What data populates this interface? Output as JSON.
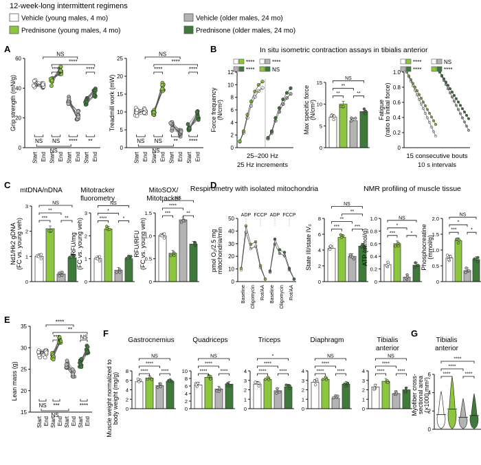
{
  "header": {
    "title": "12-week-long intermittent regimens",
    "legend": [
      {
        "label": "Vehicle (young males, 4 mo)",
        "color": "#ffffff"
      },
      {
        "label": "Prednisone (young males, 4 mo)",
        "color": "#8cc63f"
      },
      {
        "label": "Vehicle (older males, 24 mo)",
        "color": "#b3b3b3"
      },
      {
        "label": "Prednisone (older males, 24 mo)",
        "color": "#3f7a3a"
      }
    ]
  },
  "colors": {
    "veh_young": "#ffffff",
    "pred_young": "#8cc63f",
    "veh_old": "#b3b3b3",
    "pred_old": "#3f7a3a",
    "axis": "#111111"
  },
  "panels": {
    "A": "A",
    "B": "B",
    "C": "C",
    "D": "D",
    "E": "E",
    "F": "F",
    "G": "G",
    "B_title": "In situ isometric contraction assays in tibialis anterior",
    "D_resp_title": "Respirometry with isolated mitochondria",
    "D_nmr_title": "NMR profiling of muscle tissue"
  },
  "chart_data": [
    {
      "id": "grip",
      "type": "scatter",
      "ylabel": "Grip strength (mN/g)",
      "ylim": [
        0,
        60
      ],
      "yticks": [
        "0",
        "20",
        "40",
        "60"
      ],
      "categories": [
        "Start",
        "End",
        "Start",
        "End",
        "Start",
        "End",
        "Start",
        "End"
      ],
      "series": [
        {
          "group": "veh_young",
          "start": 43,
          "end": 42
        },
        {
          "group": "pred_young",
          "start": 44,
          "end": 52
        },
        {
          "group": "veh_old",
          "start": 32,
          "end": 22
        },
        {
          "group": "pred_old",
          "start": 31,
          "end": 37
        }
      ],
      "stats": [
        "****",
        "****",
        "NS",
        "****"
      ],
      "bottom_stats": [
        "NS",
        "NS",
        "****",
        "**",
        "NS"
      ]
    },
    {
      "id": "treadmill",
      "type": "scatter",
      "ylabel": "Treadmill work (mW)",
      "ylim": [
        0,
        25
      ],
      "yticks": [
        "0",
        "5",
        "10",
        "15",
        "20",
        "25"
      ],
      "categories": [
        "Start",
        "End",
        "Start",
        "End",
        "Start",
        "End",
        "Start",
        "End"
      ],
      "series": [
        {
          "group": "veh_young",
          "start": 10,
          "end": 10
        },
        {
          "group": "pred_young",
          "start": 10,
          "end": 17
        },
        {
          "group": "veh_old",
          "start": 6,
          "end": 4
        },
        {
          "group": "pred_old",
          "start": 6,
          "end": 9
        }
      ],
      "stats": [
        "****",
        "****",
        "NS",
        "****"
      ],
      "bottom_stats": [
        "NS",
        "NS",
        "**",
        "****",
        "NS"
      ]
    },
    {
      "id": "force_freq",
      "type": "line",
      "ylabel": "Force frequency (N/cm²)",
      "xlabel": "25–200 Hz 25 Hz increments",
      "ylim": [
        0,
        12
      ],
      "yticks": [
        "0",
        "2",
        "4",
        "6",
        "8",
        "10",
        "12"
      ],
      "legend_stats": [
        "****",
        "****",
        "****",
        "NS"
      ]
    },
    {
      "id": "max_force",
      "type": "bar",
      "ylabel": "Max specific force (N/cm²)",
      "ylim": [
        0,
        15
      ],
      "yticks": [
        "0",
        "5",
        "10",
        "15"
      ],
      "values": [
        7,
        10,
        6.2,
        8.3
      ],
      "stats": [
        "**",
        "**",
        "**",
        "NS"
      ]
    },
    {
      "id": "fatigue",
      "type": "line",
      "ylabel": "Fatigue (ratio to initial force)",
      "xlabel": "15 consecutive bouts 10 s intervals",
      "ylim": [
        0,
        1.0
      ],
      "yticks": [
        "0",
        "0.2",
        "0.4",
        "0.6",
        "0.8",
        "1.0"
      ],
      "legend_stats": [
        "****",
        "****",
        "NS",
        "****"
      ]
    },
    {
      "id": "mtdna",
      "type": "bar",
      "title": "mtDNA/nDNA",
      "ylabel": "Nd1/Hk2 gDNA (FC vs. young veh)",
      "ylim": [
        0,
        3
      ],
      "yticks": [
        "0",
        "1",
        "2",
        "3"
      ],
      "values": [
        1.0,
        2.1,
        0.3,
        0.95
      ],
      "stats": [
        "***",
        "**",
        "**",
        "NS"
      ]
    },
    {
      "id": "mitotracker",
      "type": "bar",
      "title": "Mitotracker fluorometry",
      "ylabel": "RFU/mg (FC vs. young veh)",
      "ylim": [
        0,
        3
      ],
      "yticks": [
        "0",
        "1",
        "2",
        "3"
      ],
      "values": [
        1.0,
        2.3,
        0.5,
        1.0
      ],
      "stats": [
        "****",
        "*",
        "*",
        "NS"
      ]
    },
    {
      "id": "mitosox",
      "type": "bar",
      "title": "MitoSOX/ Mitotracker",
      "ylabel": "RFU/RFU (FC vs. young veh)",
      "ylim": [
        0,
        1.5
      ],
      "yticks": [
        "0",
        "0.5",
        "1.0",
        "1.5"
      ],
      "values": [
        1.0,
        0.62,
        1.35,
        0.82
      ],
      "stats": [
        "***",
        "****",
        "**",
        "NS"
      ]
    },
    {
      "id": "respirometry",
      "type": "line",
      "ylabel": "pmol O₂/2.5 mg mitochondria/min",
      "ylim": [
        0,
        50
      ],
      "yticks": [
        "0",
        "10",
        "20",
        "30",
        "40",
        "50"
      ],
      "xticks": [
        "Baseline",
        "Oligomycin",
        "Rot/AA",
        "Baseline",
        "Oligomycin",
        "Rot/AA"
      ],
      "annotations": [
        "ADP",
        "FCCP",
        "ADP",
        "FCCP"
      ]
    },
    {
      "id": "state_ratio",
      "type": "bar",
      "ylabel": "State III/state IV₀",
      "ylim": [
        0,
        8
      ],
      "yticks": [
        "0",
        "2",
        "4",
        "6",
        "8"
      ],
      "values": [
        4.2,
        5.6,
        3.2,
        4.5
      ],
      "stats": [
        "***",
        "**",
        "***",
        "**",
        "NS"
      ]
    },
    {
      "id": "atp",
      "type": "bar",
      "ylabel": "ATP (mmol/g)",
      "ylim": [
        0,
        1.0
      ],
      "yticks": [
        "0",
        "0.2",
        "0.4",
        "0.6",
        "0.8",
        "1.0"
      ],
      "values": [
        0.27,
        0.6,
        0.07,
        0.26
      ],
      "stats": [
        "***",
        "*",
        "*",
        "NS"
      ]
    },
    {
      "id": "phosphocreatine",
      "type": "bar",
      "ylabel": "Phosphocreatine (mmol/g)",
      "ylim": [
        0,
        2.0
      ],
      "yticks": [
        "0",
        "0.5",
        "1.0",
        "1.5",
        "2.0"
      ],
      "values": [
        0.75,
        1.3,
        0.35,
        0.7
      ],
      "stats": [
        "***",
        "*",
        "*",
        "NS"
      ]
    },
    {
      "id": "lean_mass",
      "type": "scatter",
      "ylabel": "Lean mass (g)",
      "ylim": [
        15,
        35
      ],
      "yticks": [
        "15",
        "20",
        "25",
        "30",
        "35"
      ],
      "categories": [
        "Start",
        "End",
        "Start",
        "End",
        "Start",
        "End",
        "Start",
        "End"
      ],
      "series": [
        {
          "group": "veh_young",
          "start": 28.5,
          "end": 28.5
        },
        {
          "group": "pred_young",
          "start": 28,
          "end": 31.5
        },
        {
          "group": "veh_old",
          "start": 26,
          "end": 24
        },
        {
          "group": "pred_old",
          "start": 26.5,
          "end": 29.5
        }
      ],
      "stats": [
        "***",
        "**",
        "****",
        "NS"
      ],
      "bottom_stats": [
        "NS",
        "***",
        "****",
        "NS"
      ]
    },
    {
      "id": "muscle_weight",
      "type": "bar",
      "ylabel": "Muscle weight normalized to body weight (mg/g)",
      "subplots": [
        {
          "title": "Gastrocnemius",
          "ylim": [
            0,
            8
          ],
          "yticks": [
            "0",
            "2",
            "4",
            "6",
            "8"
          ],
          "values": [
            5.7,
            6.5,
            4.9,
            5.8
          ],
          "stats": [
            "****",
            "****",
            "****",
            "NS"
          ]
        },
        {
          "title": "Quadriceps",
          "ylim": [
            0,
            10
          ],
          "yticks": [
            "0",
            "2",
            "4",
            "6",
            "8",
            "10"
          ],
          "values": [
            6.3,
            8.3,
            5.2,
            6.5
          ],
          "stats": [
            "****",
            "****",
            "****",
            "NS"
          ]
        },
        {
          "title": "Triceps",
          "ylim": [
            0,
            4
          ],
          "yticks": [
            "0",
            "1",
            "2",
            "3",
            "4"
          ],
          "values": [
            2.6,
            3.1,
            1.9,
            2.3
          ],
          "stats": [
            "****",
            "****",
            "****",
            "*"
          ]
        },
        {
          "title": "Diaphragm",
          "ylim": [
            0,
            4
          ],
          "yticks": [
            "0",
            "1",
            "2",
            "3",
            "4"
          ],
          "values": [
            2.8,
            3.1,
            1.1,
            2.6
          ],
          "stats": [
            "****",
            "****",
            "****",
            "NS"
          ]
        },
        {
          "title": "Tibialis anterior",
          "ylim": [
            0,
            4
          ],
          "yticks": [
            "0",
            "1",
            "2",
            "3",
            "4"
          ],
          "values": [
            2.3,
            2.9,
            1.6,
            2.0
          ],
          "stats": [
            "****",
            "****",
            "****",
            "NS"
          ]
        }
      ]
    },
    {
      "id": "myofiber",
      "type": "violin",
      "title": "Tibialis anterior",
      "ylabel": "Myofiber cross-sectional area (×1000 mm²)",
      "ylim": [
        0,
        6
      ],
      "yticks": [
        "0",
        "2",
        "4",
        "6"
      ],
      "medians": [
        1.6,
        2.2,
        1.3,
        1.5
      ],
      "stats": [
        "****",
        "****",
        "****",
        "****"
      ]
    }
  ]
}
